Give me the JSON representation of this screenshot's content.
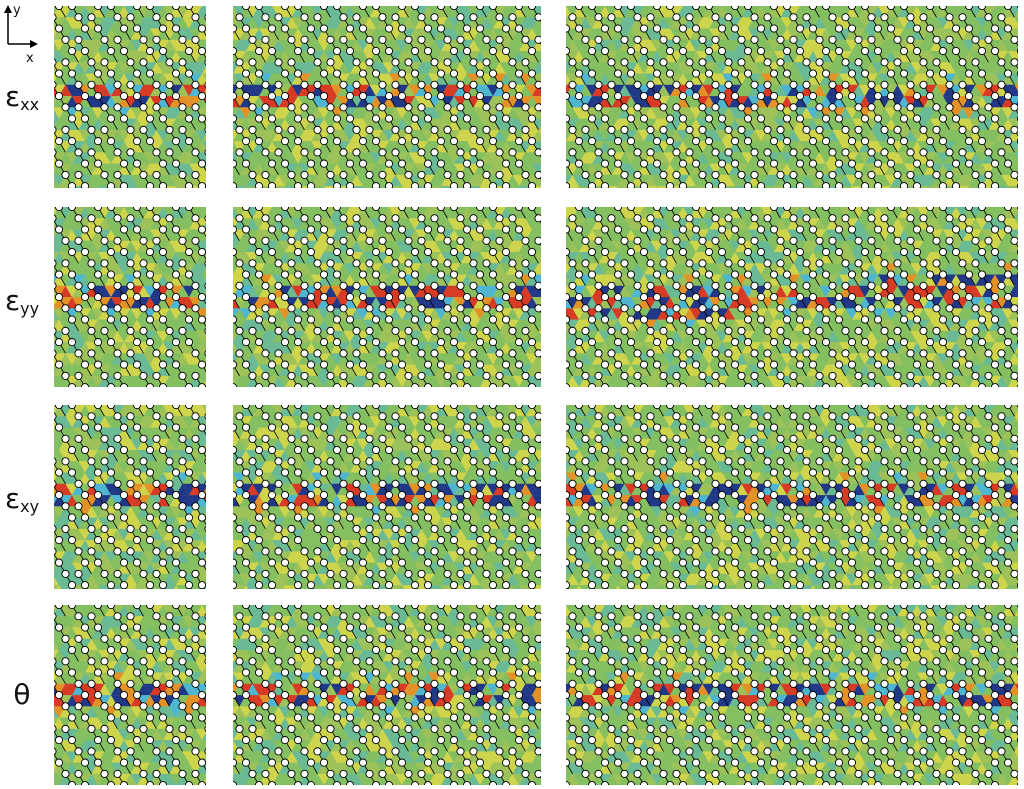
{
  "axes_indicator": {
    "y_label": "y",
    "x_label": "x"
  },
  "rows": [
    {
      "id": "exx",
      "symbol": "ε",
      "subscript": "xx"
    },
    {
      "id": "eyy",
      "symbol": "ε",
      "subscript": "yy"
    },
    {
      "id": "exy",
      "symbol": "ε",
      "subscript": "xy"
    },
    {
      "id": "theta",
      "symbol": "θ",
      "subscript": ""
    }
  ],
  "columns": [
    "left",
    "middle",
    "right"
  ],
  "colors": {
    "background_field": "#9ec25a",
    "field_green": "#7fbf63",
    "field_yellow": "#d6d84a",
    "field_teal": "#5fb8a0",
    "cyan": "#3fb4e6",
    "blue_dark": "#0a1f8f",
    "red": "#e0221c",
    "orange": "#f08a1e",
    "atom_fill": "#ffffff",
    "atom_stroke": "#000000"
  }
}
